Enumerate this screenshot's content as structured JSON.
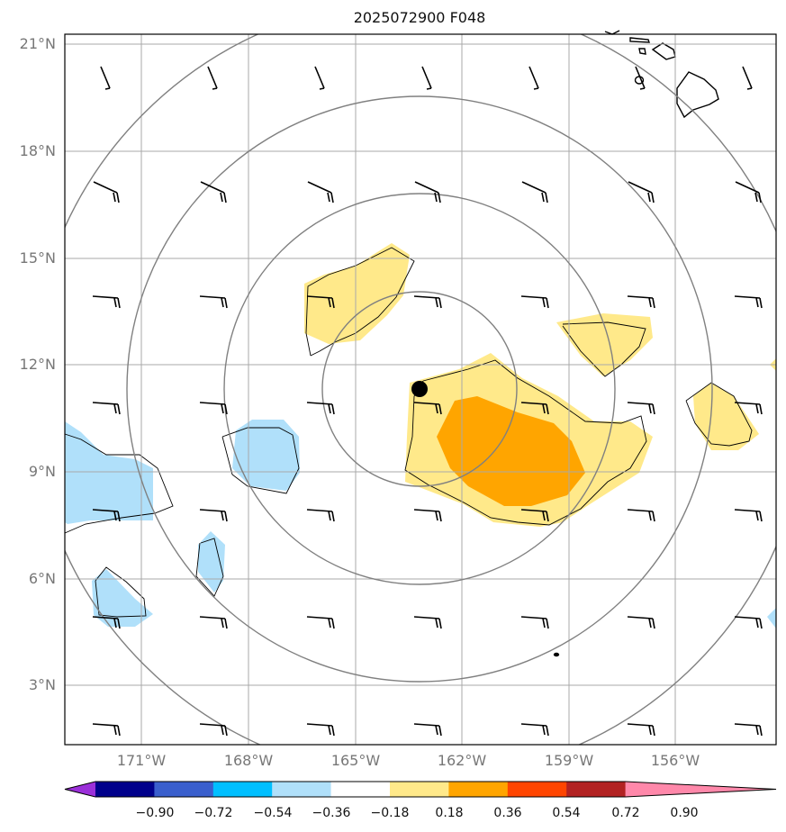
{
  "title": "2025072900 F048",
  "lat_labels": [
    "21°N",
    "18°N",
    "15°N",
    "12°N",
    "9°N",
    "6°N",
    "3°N"
  ],
  "lon_labels": [
    "171°W",
    "168°W",
    "165°W",
    "162°W",
    "159°W",
    "156°W"
  ],
  "colorbar": {
    "ticks": [
      "−0.90",
      "−0.72",
      "−0.54",
      "−0.36",
      "−0.18",
      "0.18",
      "0.36",
      "0.54",
      "0.72",
      "0.90"
    ],
    "colors": [
      "#9b30d9",
      "#00008b",
      "#3a5fcd",
      "#00bfff",
      "#b0e0fa",
      "#ffffff",
      "#ffe98a",
      "#ffa500",
      "#ff4500",
      "#b22222",
      "#ff88aa"
    ]
  },
  "storm_center": {
    "lat": 11.3,
    "lon": -163.2
  }
}
